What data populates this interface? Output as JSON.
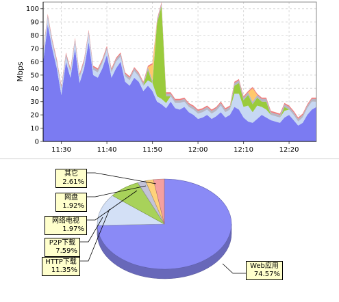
{
  "chart_data": [
    {
      "type": "area",
      "stacked": true,
      "ylabel": "Mbps",
      "ylim": [
        0,
        105
      ],
      "yticks": [
        0,
        10,
        20,
        30,
        40,
        50,
        60,
        70,
        80,
        90,
        100
      ],
      "xticks": [
        "11:30",
        "11:40",
        "11:50",
        "12:00",
        "12:10",
        "12:20"
      ],
      "xrange": [
        "11:26",
        "12:26"
      ],
      "grid": true,
      "x": [
        "11:26",
        "11:27",
        "11:28",
        "11:29",
        "11:30",
        "11:31",
        "11:32",
        "11:33",
        "11:34",
        "11:35",
        "11:36",
        "11:37",
        "11:38",
        "11:39",
        "11:40",
        "11:41",
        "11:42",
        "11:43",
        "11:44",
        "11:45",
        "11:46",
        "11:47",
        "11:48",
        "11:49",
        "11:50",
        "11:51",
        "11:52",
        "11:53",
        "11:54",
        "11:55",
        "11:56",
        "11:57",
        "11:58",
        "11:59",
        "12:00",
        "12:01",
        "12:02",
        "12:03",
        "12:04",
        "12:05",
        "12:06",
        "12:07",
        "12:08",
        "12:09",
        "12:10",
        "12:11",
        "12:12",
        "12:13",
        "12:14",
        "12:15",
        "12:16",
        "12:17",
        "12:18",
        "12:19",
        "12:20",
        "12:21",
        "12:22",
        "12:23",
        "12:24",
        "12:25",
        "12:26"
      ],
      "series": [
        {
          "name": "Web应用",
          "color": "#7b7bf2",
          "values": [
            60,
            88,
            70,
            55,
            35,
            60,
            48,
            70,
            44,
            55,
            75,
            50,
            48,
            55,
            65,
            48,
            55,
            60,
            45,
            42,
            48,
            45,
            38,
            42,
            38,
            30,
            28,
            25,
            30,
            25,
            24,
            26,
            22,
            20,
            17,
            18,
            20,
            17,
            19,
            22,
            18,
            20,
            26,
            24,
            18,
            15,
            14,
            17,
            20,
            18,
            16,
            15,
            14,
            18,
            20,
            16,
            12,
            14,
            20,
            24,
            26
          ]
        },
        {
          "name": "HTTP下载",
          "color": "#c7d8f3",
          "values": [
            6,
            5,
            4,
            4,
            4,
            4,
            4,
            5,
            4,
            4,
            6,
            4,
            4,
            4,
            4,
            4,
            5,
            4,
            4,
            4,
            5,
            4,
            4,
            4,
            6,
            4,
            4,
            4,
            4,
            4,
            5,
            4,
            4,
            4,
            4,
            4,
            4,
            4,
            4,
            5,
            4,
            4,
            10,
            12,
            8,
            12,
            8,
            10,
            6,
            6,
            4,
            4,
            4,
            5,
            4,
            4,
            3,
            4,
            5,
            6,
            4
          ]
        },
        {
          "name": "P2P下载",
          "color": "#9acb3c",
          "values": [
            0,
            0,
            0,
            0,
            0,
            0,
            0,
            0,
            0,
            0,
            0,
            0,
            0,
            0,
            0,
            0,
            0,
            0,
            0,
            0,
            0,
            0,
            0,
            8,
            0,
            55,
            70,
            5,
            0,
            0,
            0,
            0,
            0,
            0,
            0,
            0,
            0,
            0,
            0,
            0,
            0,
            0,
            6,
            8,
            5,
            8,
            6,
            6,
            4,
            6,
            0,
            0,
            0,
            3,
            0,
            0,
            0,
            0,
            0,
            0,
            0
          ]
        },
        {
          "name": "网络电视",
          "color": "#b6b6c4",
          "values": [
            2,
            2,
            2,
            2,
            2,
            2,
            2,
            2,
            2,
            2,
            2,
            2,
            2,
            2,
            2,
            2,
            2,
            2,
            2,
            2,
            2,
            2,
            2,
            2,
            2,
            2,
            2,
            2,
            2,
            2,
            2,
            2,
            2,
            2,
            2,
            2,
            2,
            2,
            2,
            2,
            2,
            2,
            2,
            2,
            2,
            2,
            2,
            2,
            2,
            2,
            2,
            2,
            2,
            2,
            2,
            2,
            2,
            2,
            2,
            2,
            2
          ]
        },
        {
          "name": "网盘",
          "color": "#ffc86b",
          "values": [
            0,
            0,
            0,
            0,
            0,
            0,
            0,
            0,
            0,
            0,
            0,
            0,
            0,
            0,
            0,
            0,
            0,
            0,
            0,
            0,
            0,
            0,
            0,
            0,
            12,
            0,
            0,
            0,
            0,
            0,
            0,
            0,
            0,
            0,
            0,
            0,
            0,
            0,
            0,
            0,
            0,
            0,
            0,
            0,
            0,
            0,
            10,
            0,
            0,
            0,
            0,
            0,
            0,
            0,
            0,
            0,
            0,
            0,
            0,
            0,
            0
          ]
        },
        {
          "name": "其它",
          "color": "#f07a7a",
          "values": [
            1,
            1,
            1,
            1,
            1,
            1,
            1,
            1,
            1,
            1,
            1,
            1,
            1,
            1,
            1,
            1,
            1,
            1,
            1,
            1,
            1,
            1,
            1,
            1,
            1,
            1,
            1,
            1,
            1,
            1,
            1,
            1,
            1,
            1,
            1,
            1,
            1,
            1,
            1,
            1,
            1,
            1,
            1,
            1,
            1,
            1,
            1,
            1,
            1,
            1,
            1,
            1,
            1,
            1,
            1,
            1,
            1,
            1,
            1,
            1,
            1
          ]
        }
      ]
    },
    {
      "type": "pie",
      "slices": [
        {
          "name": "Web应用",
          "value": 74.57,
          "label": "74.57%",
          "color": "#8a8af6"
        },
        {
          "name": "HTTP下载",
          "value": 11.35,
          "label": "11.35%",
          "color": "#d3e0f6"
        },
        {
          "name": "P2P下载",
          "value": 7.59,
          "label": "7.59%",
          "color": "#a8d25a"
        },
        {
          "name": "网络电视",
          "value": 1.97,
          "label": "1.97%",
          "color": "#c3c3d8"
        },
        {
          "name": "网盘",
          "value": 1.92,
          "label": "1.92%",
          "color": "#ffd27a"
        },
        {
          "name": "其它",
          "value": 2.61,
          "label": "2.61%",
          "color": "#f5a0a0"
        }
      ]
    }
  ]
}
